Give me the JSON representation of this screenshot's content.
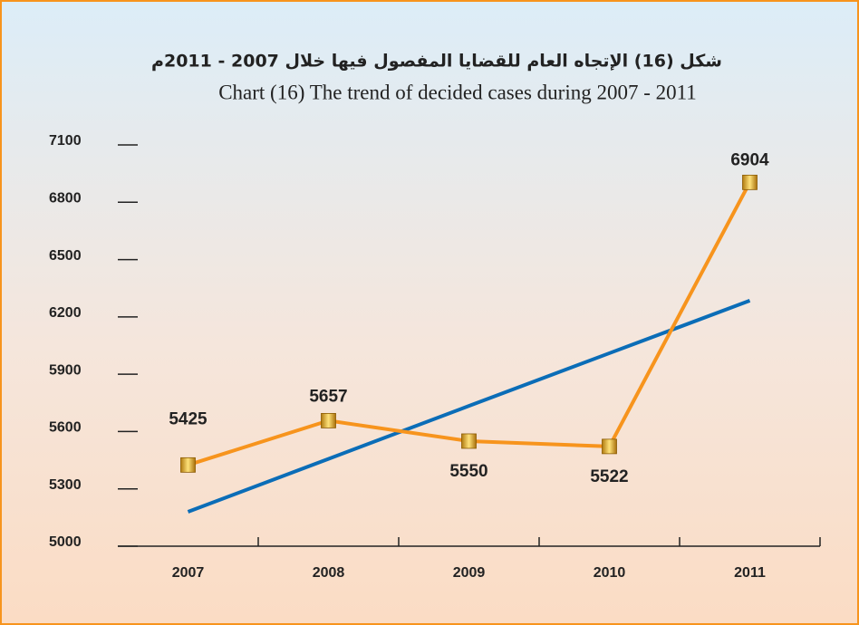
{
  "chart_data": {
    "type": "line",
    "title": "شكل (16) الإتجاه العام  للقضايا المفصول فيها خلال 2007 - 2011م",
    "subtitle": "Chart (16) The trend of decided cases during  2007 - 2011",
    "categories": [
      "2007",
      "2008",
      "2009",
      "2010",
      "2011"
    ],
    "series": [
      {
        "color": "#f7941d",
        "marker": "square",
        "data_labels": true,
        "values": [
          5425,
          5657,
          5550,
          5522,
          6904
        ]
      },
      {
        "color": "#0b6db7",
        "marker": "none",
        "data_labels": false,
        "values": [
          5180,
          5457,
          5734,
          6010,
          6285
        ]
      }
    ],
    "ylim": [
      5000,
      7100
    ],
    "yticks": [
      5000,
      5300,
      5600,
      5900,
      6200,
      6500,
      6800,
      7100
    ],
    "grid": false
  }
}
